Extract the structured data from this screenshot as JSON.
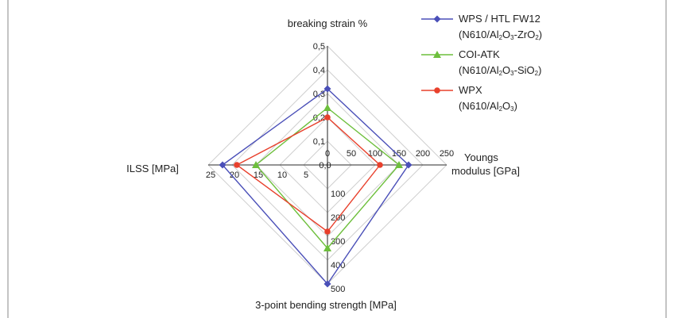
{
  "chart_data": {
    "type": "radar",
    "axes": [
      {
        "label": "breaking strain %",
        "max": 0.5,
        "ticks": [
          "0",
          "0,1",
          "0,2",
          "0,3",
          "0,4",
          "0,5"
        ]
      },
      {
        "label_lines": [
          "Youngs",
          "modulus [GPa]"
        ],
        "max": 250,
        "ticks": [
          "0",
          "50",
          "100",
          "150",
          "200",
          "250"
        ]
      },
      {
        "label": "3-point bending strength [MPa]",
        "max": 500,
        "ticks": [
          "0",
          "100",
          "200",
          "300",
          "400",
          "500"
        ]
      },
      {
        "label": "ILSS [MPa]",
        "max": 25,
        "ticks": [
          "0",
          "5",
          "10",
          "15",
          "20",
          "25"
        ]
      }
    ],
    "center_label": "0,0",
    "grid": true,
    "legend_position": "top-right",
    "series": [
      {
        "name": "WPS / HTL FW12",
        "sub_html": "(N610/Al<sub>2</sub>O<sub>3</sub>-ZrO<sub>2</sub>)",
        "color": "#4a4fb8",
        "marker": "diamond",
        "values": [
          0.32,
          170,
          500,
          22
        ]
      },
      {
        "name": "COI-ATK",
        "sub_html": "(N610/Al<sub>2</sub>O<sub>3</sub>-SiO<sub>2</sub>)",
        "color": "#6dbf3c",
        "marker": "triangle",
        "values": [
          0.24,
          150,
          350,
          15
        ]
      },
      {
        "name": "WPX",
        "sub_html": "(N610/Al<sub>2</sub>O<sub>3</sub>)",
        "color": "#e8402c",
        "marker": "circle",
        "values": [
          0.2,
          110,
          280,
          19
        ]
      }
    ]
  }
}
